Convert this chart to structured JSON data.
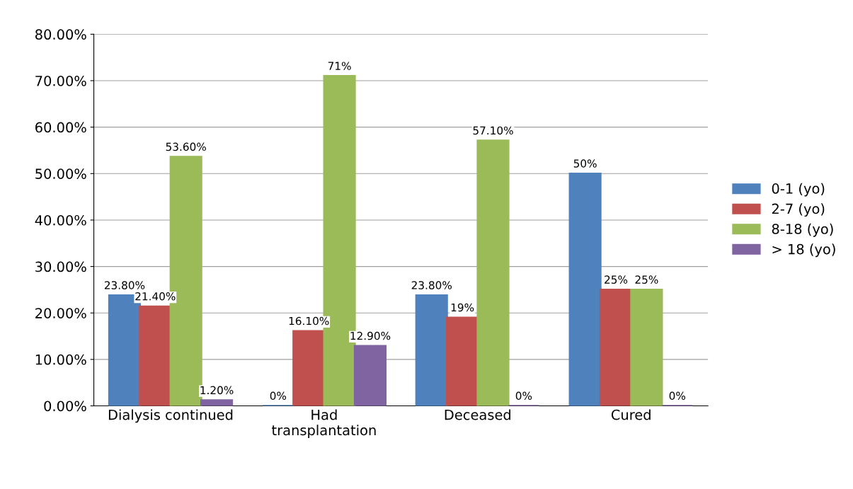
{
  "chart_data": {
    "type": "bar",
    "categories": [
      "Dialysis continued",
      "Had\ntransplantation",
      "Deceased",
      "Cured"
    ],
    "series": [
      {
        "name": "0-1 (yo)",
        "color": "#4f81bd",
        "values": [
          23.8,
          0,
          23.8,
          50
        ],
        "value_labels": [
          "23.80%",
          "0%",
          "23.80%",
          "50%"
        ]
      },
      {
        "name": "2-7 (yo)",
        "color": "#c0504d",
        "values": [
          21.4,
          16.1,
          19,
          25
        ],
        "value_labels": [
          "21.40%",
          "16.10%",
          "19%",
          "25%"
        ]
      },
      {
        "name": "8-18 (yo)",
        "color": "#9bbb59",
        "values": [
          53.6,
          71,
          57.1,
          25
        ],
        "value_labels": [
          "53.60%",
          "71%",
          "57.10%",
          "25%"
        ]
      },
      {
        "name": "> 18 (yo)",
        "color": "#8064a2",
        "values": [
          1.2,
          12.9,
          0,
          0
        ],
        "value_labels": [
          "1.20%",
          "12.90%",
          "0%",
          "0%"
        ]
      }
    ],
    "ylim": [
      0,
      80
    ],
    "yticks": [
      {
        "value": 0,
        "label": "0.00%"
      },
      {
        "value": 10,
        "label": "10.00%"
      },
      {
        "value": 20,
        "label": "20.00%"
      },
      {
        "value": 30,
        "label": "30.00%"
      },
      {
        "value": 40,
        "label": "40.00%"
      },
      {
        "value": 50,
        "label": "50.00%"
      },
      {
        "value": 60,
        "label": "60.00%"
      },
      {
        "value": 70,
        "label": "70.00%"
      },
      {
        "value": 80,
        "label": "80.00%"
      }
    ],
    "grid": "y",
    "legend": "right"
  }
}
